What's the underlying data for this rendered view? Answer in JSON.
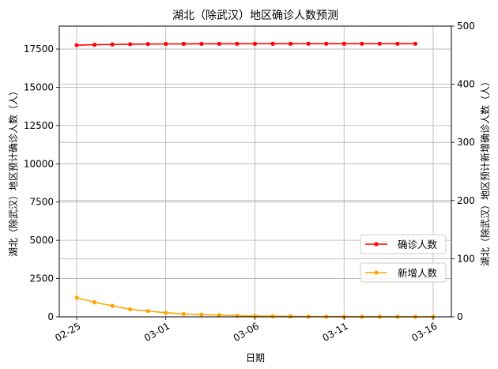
{
  "chart_data": {
    "type": "line",
    "title": "湖北（除武汉）地区确诊人数预测",
    "xlabel": "日期",
    "ylabel_left": "湖北（除武汉）地区预计确诊人数（人）",
    "ylabel_right": "湖北（除武汉）地区预计新增确诊人数（人）",
    "x_dates": [
      "02-25",
      "02-26",
      "02-27",
      "02-28",
      "02-29",
      "03-01",
      "03-02",
      "03-03",
      "03-04",
      "03-05",
      "03-06",
      "03-07",
      "03-08",
      "03-09",
      "03-10",
      "03-11",
      "03-12",
      "03-13",
      "03-14",
      "03-15",
      "03-16"
    ],
    "x_tick_labels": [
      "02-25",
      "03-01",
      "03-06",
      "03-11",
      "03-16"
    ],
    "ylim_left": [
      0,
      19000
    ],
    "ylim_right": [
      0,
      500
    ],
    "y_ticks_left": [
      0,
      2500,
      5000,
      7500,
      10000,
      12500,
      15000,
      17500
    ],
    "y_tick_labels_left": [
      "0",
      "2500",
      "5000",
      "7500",
      "10000",
      "12500",
      "15000",
      "17500"
    ],
    "y_ticks_right": [
      0,
      100,
      200,
      300,
      400,
      500
    ],
    "y_tick_labels_right": [
      "0",
      "100",
      "200",
      "300",
      "400",
      "500"
    ],
    "grid": true,
    "legend_placement": "lower-right",
    "series": [
      {
        "name": "确诊人数",
        "axis": "left",
        "color": "#ff0000",
        "x": [
          "02-25",
          "02-26",
          "02-27",
          "02-28",
          "02-29",
          "03-01",
          "03-02",
          "03-03",
          "03-04",
          "03-05",
          "03-06",
          "03-07",
          "03-08",
          "03-09",
          "03-10",
          "03-11",
          "03-12",
          "03-13",
          "03-14",
          "03-15"
        ],
        "values": [
          17750,
          17780,
          17800,
          17815,
          17825,
          17832,
          17837,
          17840,
          17842,
          17844,
          17845,
          17846,
          17846,
          17847,
          17847,
          17847,
          17847,
          17847,
          17847,
          17847
        ]
      },
      {
        "name": "新增人数",
        "axis": "right",
        "color": "#ffa500",
        "x": [
          "02-25",
          "02-26",
          "02-27",
          "02-28",
          "02-29",
          "03-01",
          "03-02",
          "03-03",
          "03-04",
          "03-05",
          "03-06",
          "03-07",
          "03-08",
          "03-09",
          "03-10",
          "03-11",
          "03-12",
          "03-13",
          "03-14",
          "03-15",
          "03-16"
        ],
        "values": [
          33,
          25,
          19,
          13,
          10,
          7,
          5,
          4,
          3,
          2,
          1.5,
          1.2,
          0.8,
          0.6,
          0.4,
          0.3,
          0.2,
          0.15,
          0.1,
          0.08,
          0.05
        ]
      }
    ]
  }
}
